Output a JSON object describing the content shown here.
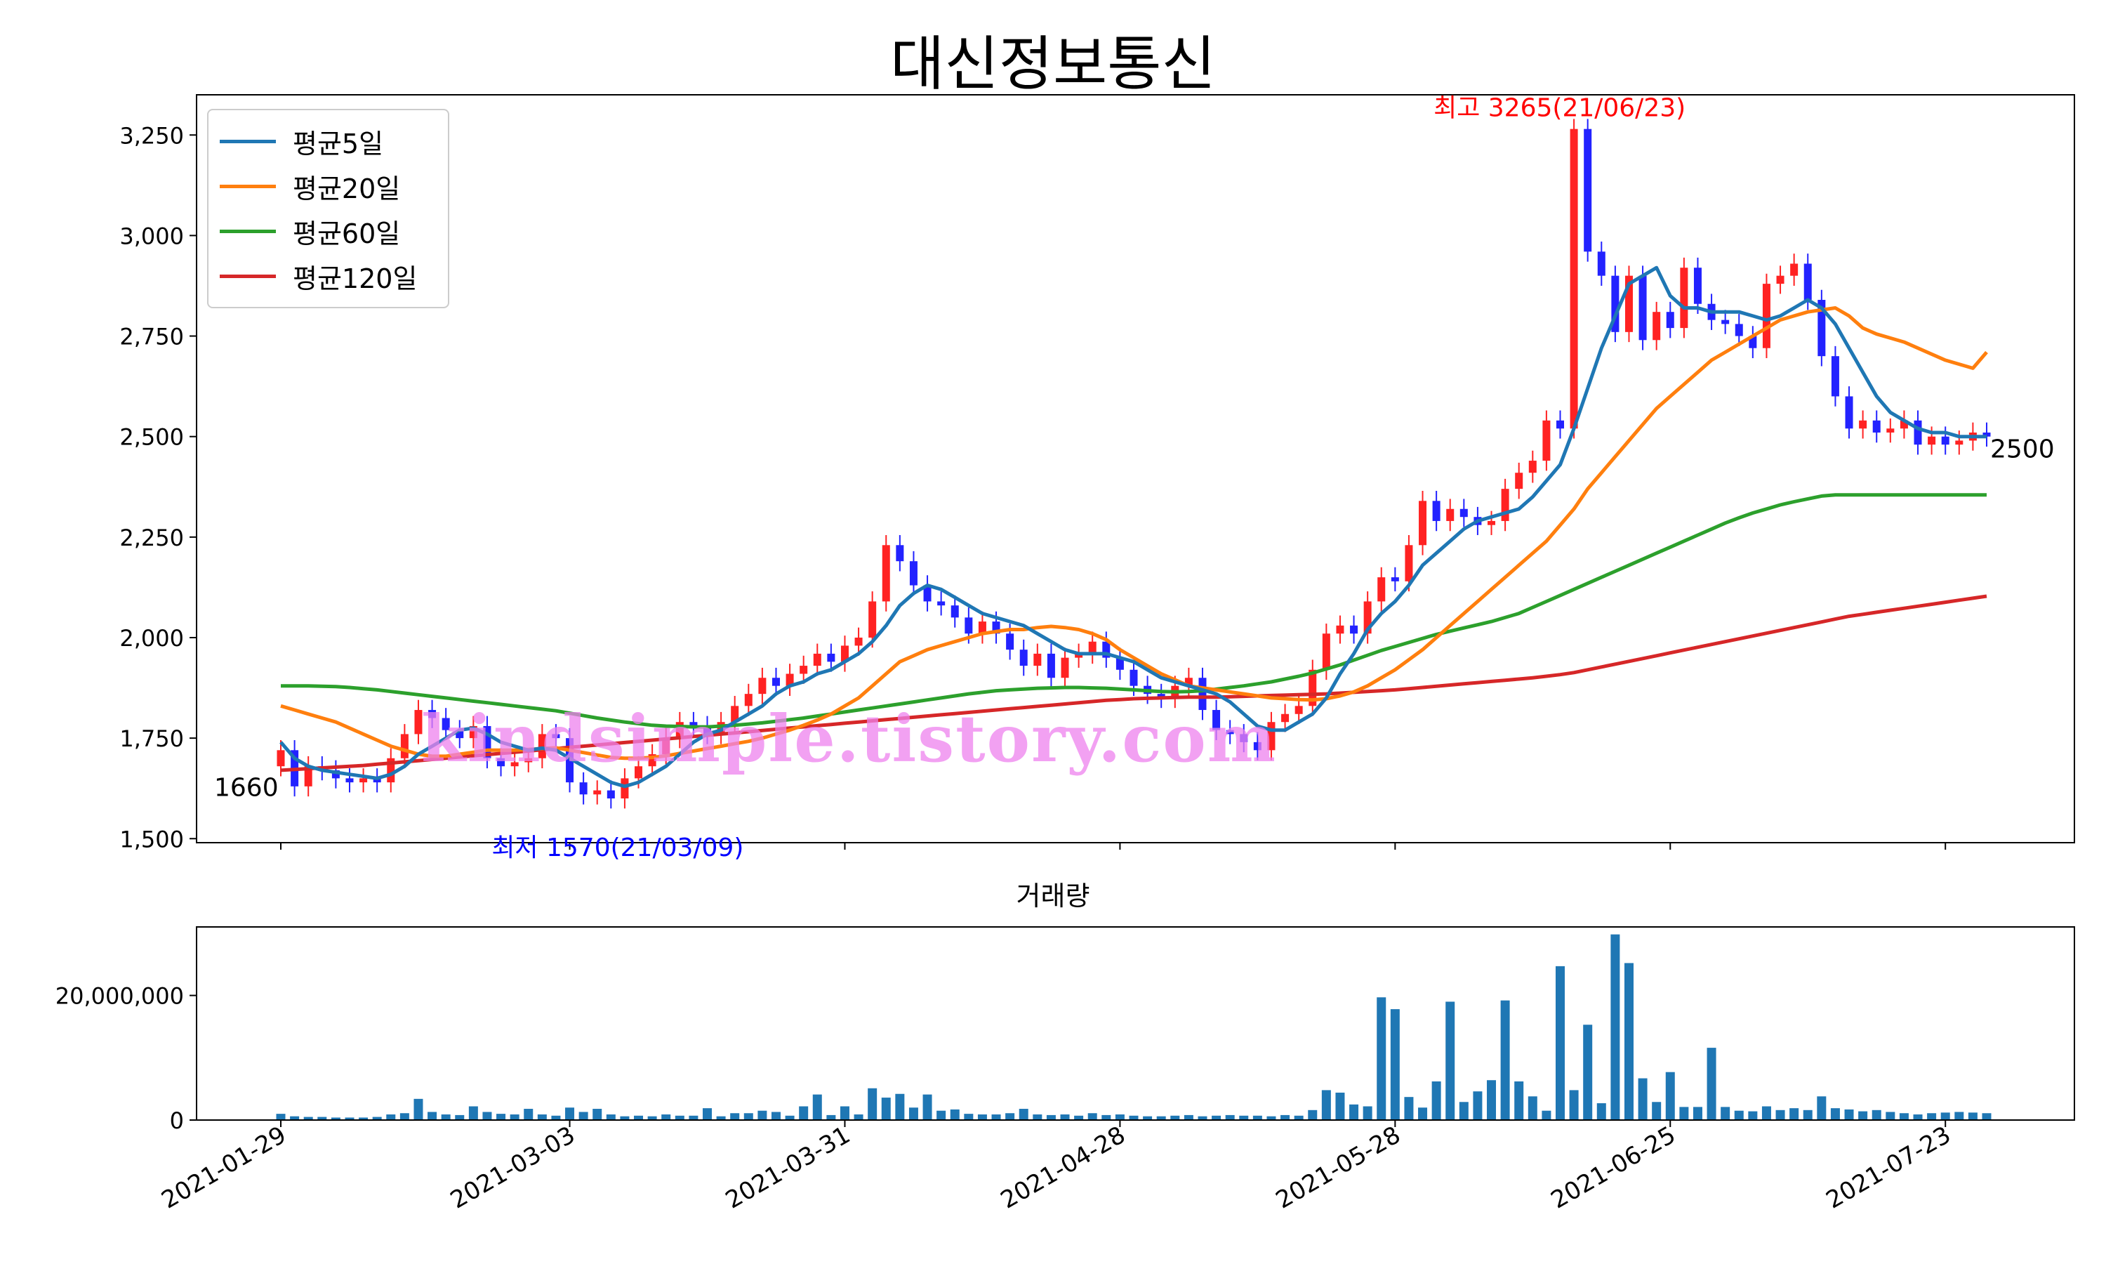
{
  "title": "대신정보통신",
  "volume_title": "거래량",
  "watermark": "kindsimple.tistory.com",
  "colors": {
    "up": "#ff2222",
    "down": "#2222ff",
    "ma5": "#1f77b4",
    "ma20": "#ff7f0e",
    "ma60": "#2ca02c",
    "ma120": "#d62728",
    "volume": "#1f77b4"
  },
  "legend": [
    {
      "label": "평균5일",
      "color": "#1f77b4"
    },
    {
      "label": "평균20일",
      "color": "#ff7f0e"
    },
    {
      "label": "평균60일",
      "color": "#2ca02c"
    },
    {
      "label": "평균120일",
      "color": "#d62728"
    }
  ],
  "annotations": {
    "high": "최고 3265(21/06/23)",
    "low": "최저 1570(21/03/09)",
    "first": "1660",
    "last": "2500"
  },
  "chart_data": [
    {
      "type": "candlestick",
      "title": "대신정보통신",
      "x_ticks": [
        "2021-01-29",
        "2021-03-03",
        "2021-03-31",
        "2021-04-28",
        "2021-05-28",
        "2021-06-25",
        "2021-07-23"
      ],
      "y_ticks": [
        1500,
        1750,
        2000,
        2250,
        2500,
        2750,
        3000,
        3250
      ],
      "ylim": [
        1490,
        3350
      ],
      "n_points": 125,
      "tick_indices": [
        0,
        21,
        41,
        61,
        81,
        101,
        121
      ],
      "close": [
        1720,
        1630,
        1680,
        1670,
        1650,
        1640,
        1650,
        1640,
        1700,
        1760,
        1820,
        1800,
        1770,
        1750,
        1780,
        1700,
        1680,
        1690,
        1700,
        1760,
        1750,
        1640,
        1610,
        1620,
        1600,
        1650,
        1680,
        1710,
        1750,
        1790,
        1780,
        1760,
        1790,
        1830,
        1860,
        1900,
        1880,
        1910,
        1930,
        1960,
        1940,
        1980,
        2000,
        2090,
        2230,
        2190,
        2130,
        2090,
        2080,
        2050,
        2010,
        2040,
        2010,
        1970,
        1930,
        1960,
        1900,
        1950,
        1960,
        1990,
        1950,
        1920,
        1880,
        1860,
        1850,
        1880,
        1900,
        1820,
        1770,
        1760,
        1740,
        1720,
        1790,
        1810,
        1830,
        1920,
        2010,
        2030,
        2010,
        2090,
        2150,
        2140,
        2230,
        2340,
        2290,
        2320,
        2300,
        2280,
        2290,
        2370,
        2410,
        2440,
        2540,
        2520,
        3265,
        2960,
        2900,
        2760,
        2900,
        2740,
        2810,
        2770,
        2920,
        2830,
        2790,
        2780,
        2750,
        2720,
        2880,
        2900,
        2930,
        2840,
        2700,
        2600,
        2520,
        2540,
        2510,
        2520,
        2540,
        2480,
        2500,
        2480,
        2490,
        2510,
        2500
      ],
      "volume": [
        1000000,
        600000,
        500000,
        500000,
        400000,
        400000,
        400000,
        500000,
        900000,
        1100000,
        3400000,
        1300000,
        900000,
        800000,
        2200000,
        1300000,
        1000000,
        900000,
        1800000,
        900000,
        700000,
        2000000,
        1300000,
        1800000,
        900000,
        600000,
        700000,
        600000,
        900000,
        700000,
        700000,
        1900000,
        600000,
        1100000,
        1100000,
        1500000,
        1300000,
        700000,
        2200000,
        4100000,
        800000,
        2200000,
        900000,
        5100000,
        3600000,
        4200000,
        2000000,
        4100000,
        1500000,
        1700000,
        1000000,
        900000,
        900000,
        1100000,
        1800000,
        900000,
        800000,
        900000,
        700000,
        1100000,
        800000,
        900000,
        700000,
        600000,
        600000,
        700000,
        800000,
        600000,
        700000,
        800000,
        700000,
        700000,
        600000,
        800000,
        700000,
        1600000,
        4800000,
        4400000,
        2500000,
        2200000,
        19700000,
        17800000,
        3700000,
        2000000,
        6200000,
        19000000,
        2900000,
        4600000,
        6400000,
        19200000,
        6200000,
        3800000,
        1500000,
        24700000,
        4800000,
        15300000,
        2700000,
        29800000,
        25200000,
        6700000,
        2900000,
        7700000,
        2100000,
        2100000,
        11600000,
        2100000,
        1500000,
        1400000,
        2200000,
        1600000,
        1900000,
        1600000,
        3800000,
        1900000,
        1700000,
        1400000,
        1600000,
        1300000,
        1100000,
        900000,
        1100000,
        1200000,
        1300000,
        1200000,
        1100000
      ],
      "ma5": [
        1740,
        1700,
        1680,
        1670,
        1665,
        1660,
        1655,
        1650,
        1660,
        1680,
        1710,
        1730,
        1750,
        1770,
        1775,
        1760,
        1740,
        1730,
        1720,
        1725,
        1720,
        1700,
        1680,
        1660,
        1640,
        1630,
        1640,
        1660,
        1680,
        1710,
        1740,
        1760,
        1770,
        1790,
        1810,
        1830,
        1860,
        1880,
        1890,
        1910,
        1920,
        1940,
        1960,
        1990,
        2030,
        2080,
        2110,
        2130,
        2120,
        2100,
        2080,
        2060,
        2050,
        2040,
        2030,
        2010,
        1990,
        1970,
        1960,
        1960,
        1960,
        1950,
        1940,
        1920,
        1900,
        1890,
        1880,
        1870,
        1860,
        1840,
        1810,
        1780,
        1770,
        1770,
        1790,
        1810,
        1850,
        1910,
        1960,
        2020,
        2060,
        2090,
        2130,
        2180,
        2210,
        2240,
        2270,
        2290,
        2300,
        2310,
        2320,
        2350,
        2390,
        2430,
        2520,
        2620,
        2720,
        2800,
        2880,
        2900,
        2920,
        2850,
        2820,
        2820,
        2810,
        2810,
        2810,
        2800,
        2790,
        2800,
        2820,
        2840,
        2820,
        2780,
        2720,
        2660,
        2600,
        2560,
        2540,
        2520,
        2510,
        2510,
        2500,
        2500,
        2500
      ],
      "ma20": [
        1830,
        1820,
        1810,
        1800,
        1790,
        1775,
        1760,
        1745,
        1730,
        1720,
        1710,
        1705,
        1705,
        1710,
        1715,
        1720,
        1720,
        1720,
        1722,
        1724,
        1726,
        1720,
        1714,
        1708,
        1702,
        1700,
        1700,
        1702,
        1706,
        1712,
        1718,
        1724,
        1730,
        1736,
        1742,
        1750,
        1760,
        1770,
        1782,
        1795,
        1810,
        1830,
        1850,
        1880,
        1910,
        1940,
        1955,
        1970,
        1980,
        1990,
        2000,
        2010,
        2015,
        2020,
        2020,
        2025,
        2028,
        2025,
        2020,
        2010,
        1995,
        1970,
        1950,
        1930,
        1910,
        1895,
        1880,
        1875,
        1870,
        1865,
        1860,
        1855,
        1850,
        1848,
        1846,
        1845,
        1848,
        1855,
        1865,
        1880,
        1900,
        1920,
        1945,
        1970,
        2000,
        2030,
        2060,
        2090,
        2120,
        2150,
        2180,
        2210,
        2240,
        2280,
        2320,
        2370,
        2410,
        2450,
        2490,
        2530,
        2570,
        2600,
        2630,
        2660,
        2690,
        2710,
        2730,
        2750,
        2770,
        2790,
        2800,
        2810,
        2815,
        2820,
        2800,
        2770,
        2755,
        2745,
        2735,
        2720,
        2705,
        2690,
        2680,
        2670,
        2710
      ],
      "ma60": [
        1880,
        1880,
        1880,
        1879,
        1878,
        1876,
        1873,
        1870,
        1866,
        1862,
        1858,
        1854,
        1850,
        1846,
        1842,
        1838,
        1834,
        1830,
        1826,
        1822,
        1818,
        1812,
        1806,
        1800,
        1795,
        1790,
        1786,
        1782,
        1780,
        1779,
        1778,
        1778,
        1780,
        1782,
        1785,
        1788,
        1792,
        1796,
        1800,
        1805,
        1810,
        1815,
        1820,
        1825,
        1830,
        1835,
        1840,
        1845,
        1850,
        1855,
        1860,
        1864,
        1868,
        1870,
        1872,
        1874,
        1875,
        1876,
        1876,
        1875,
        1874,
        1872,
        1870,
        1868,
        1866,
        1865,
        1866,
        1868,
        1872,
        1876,
        1880,
        1885,
        1890,
        1897,
        1904,
        1912,
        1922,
        1932,
        1944,
        1956,
        1968,
        1978,
        1988,
        1998,
        2008,
        2016,
        2024,
        2032,
        2040,
        2050,
        2060,
        2075,
        2090,
        2105,
        2120,
        2135,
        2150,
        2165,
        2180,
        2195,
        2210,
        2225,
        2240,
        2255,
        2270,
        2285,
        2298,
        2310,
        2320,
        2330,
        2338,
        2345,
        2352,
        2355,
        2355,
        2355,
        2355,
        2355,
        2355,
        2355,
        2355,
        2355,
        2355,
        2355,
        2355
      ],
      "ma120": [
        1670,
        1672,
        1674,
        1676,
        1678,
        1680,
        1682,
        1685,
        1688,
        1691,
        1694,
        1697,
        1700,
        1703,
        1706,
        1709,
        1712,
        1715,
        1718,
        1721,
        1724,
        1727,
        1730,
        1733,
        1736,
        1739,
        1742,
        1745,
        1748,
        1751,
        1754,
        1757,
        1760,
        1763,
        1766,
        1769,
        1772,
        1775,
        1778,
        1781,
        1784,
        1787,
        1790,
        1793,
        1796,
        1799,
        1802,
        1805,
        1808,
        1811,
        1814,
        1817,
        1820,
        1823,
        1826,
        1829,
        1832,
        1835,
        1838,
        1841,
        1844,
        1846,
        1848,
        1849,
        1850,
        1851,
        1852,
        1852,
        1852,
        1853,
        1854,
        1855,
        1856,
        1857,
        1858,
        1859,
        1860,
        1862,
        1864,
        1866,
        1868,
        1870,
        1873,
        1876,
        1879,
        1882,
        1885,
        1888,
        1891,
        1894,
        1897,
        1900,
        1904,
        1908,
        1913,
        1920,
        1927,
        1934,
        1941,
        1948,
        1955,
        1962,
        1969,
        1976,
        1983,
        1990,
        1997,
        2004,
        2011,
        2018,
        2025,
        2032,
        2039,
        2046,
        2053,
        2058,
        2063,
        2068,
        2073,
        2078,
        2083,
        2088,
        2093,
        2098,
        2103
      ]
    },
    {
      "type": "bar",
      "title": "거래량",
      "y_ticks": [
        0,
        20000000
      ],
      "y_tick_labels": [
        "0",
        "20,000,000"
      ],
      "ylim": [
        0,
        31000000
      ]
    }
  ]
}
